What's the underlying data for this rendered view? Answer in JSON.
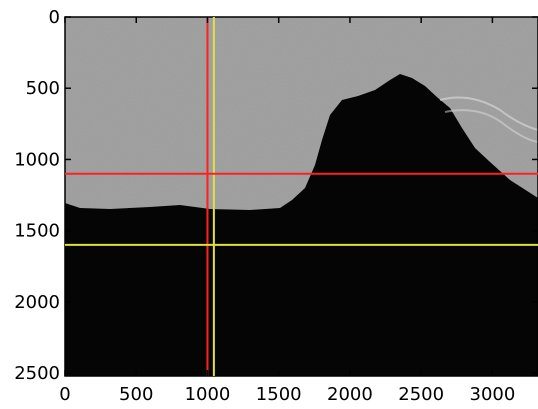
{
  "chart_data": {
    "type": "image",
    "xlim": [
      0,
      3320
    ],
    "xticks": [
      0,
      500,
      1000,
      1500,
      2000,
      2500,
      3000
    ],
    "ylim": [
      2520,
      0
    ],
    "yticks": [
      0,
      500,
      1000,
      1500,
      2000,
      2500
    ],
    "vlines": [
      {
        "x": 1000,
        "color": "#ff2020"
      },
      {
        "x": 1045,
        "color": "#e0e040"
      }
    ],
    "hlines": [
      {
        "y": 1100,
        "color": "#ff2020"
      },
      {
        "y": 1600,
        "color": "#e0e040"
      }
    ]
  }
}
